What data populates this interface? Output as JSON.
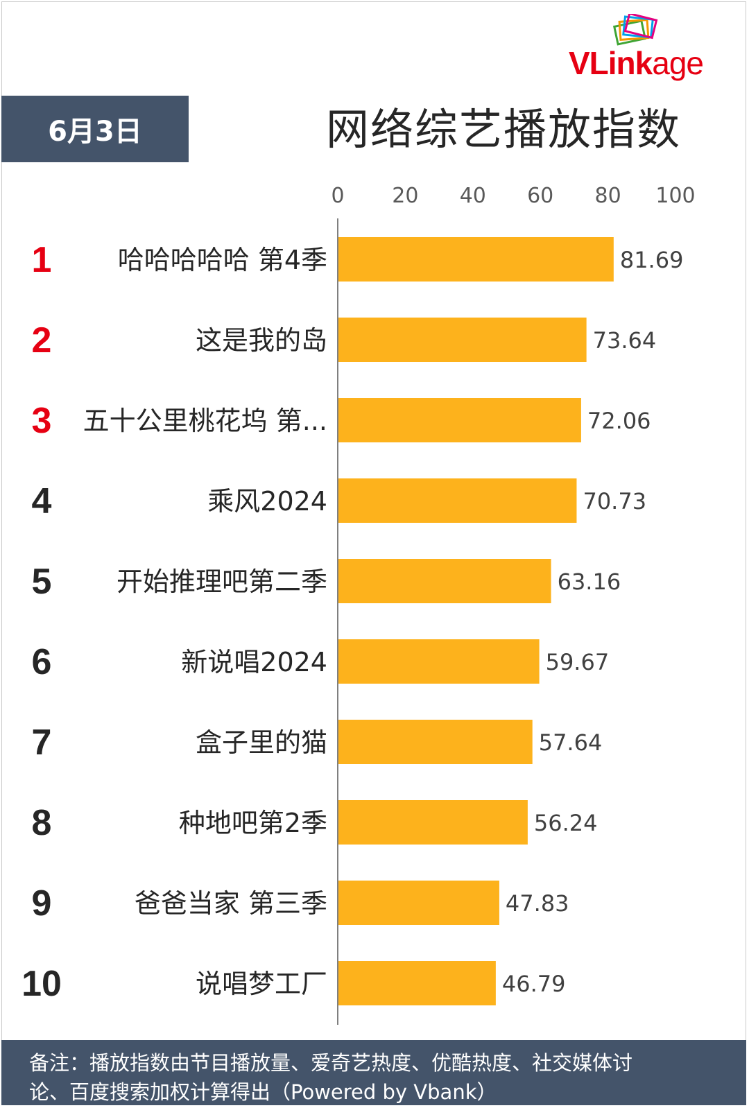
{
  "logo": {
    "text_vl": "VL",
    "text_ink": "ink",
    "text_age": "age",
    "icon": "stacked-frames-icon"
  },
  "date_badge": "6月3日",
  "title": "网络综艺播放指数",
  "colors": {
    "bar": "#fdb21c",
    "badge": "#44546a",
    "top_rank": "#e60012",
    "rank": "#262626",
    "axis": "#595959"
  },
  "chart_data": {
    "type": "bar",
    "orientation": "horizontal",
    "title": "网络综艺播放指数",
    "xlim": [
      0,
      100
    ],
    "xticks": [
      "0",
      "20",
      "40",
      "60",
      "80",
      "100"
    ],
    "xtick_values": [
      0,
      20,
      40,
      60,
      80,
      100
    ],
    "grid": false,
    "ranks": [
      "1",
      "2",
      "3",
      "4",
      "5",
      "6",
      "7",
      "8",
      "9",
      "10"
    ],
    "categories": [
      "哈哈哈哈哈 第4季",
      "这是我的岛",
      "五十公里桃花坞 第...",
      "乘风2024",
      "开始推理吧第二季",
      "新说唱2024",
      "盒子里的猫",
      "种地吧第2季",
      "爸爸当家 第三季",
      "说唱梦工厂"
    ],
    "values": [
      81.69,
      73.64,
      72.06,
      70.73,
      63.16,
      59.67,
      57.64,
      56.24,
      47.83,
      46.79
    ],
    "value_labels": [
      "81.69",
      "73.64",
      "72.06",
      "70.73",
      "63.16",
      "59.67",
      "57.64",
      "56.24",
      "47.83",
      "46.79"
    ]
  },
  "footer": {
    "line1": "备注：播放指数由节目播放量、爱奇艺热度、优酷热度、社交媒体讨",
    "line2": "论、百度搜索加权计算得出（Powered by Vbank）"
  }
}
